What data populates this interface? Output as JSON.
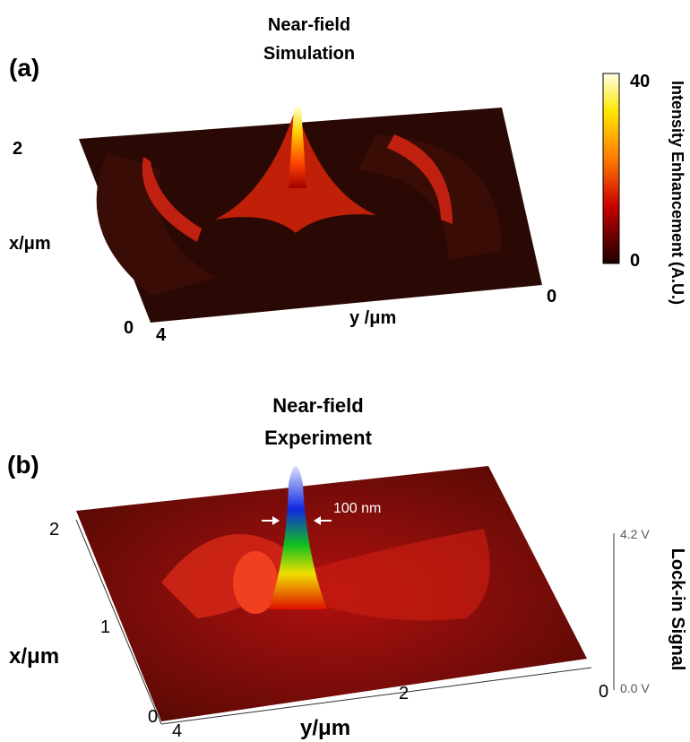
{
  "panel_a": {
    "label": "(a)",
    "title": [
      "Near-field",
      "Simulation"
    ],
    "x_label": "x/μm",
    "x_ticks": [
      "2",
      "0"
    ],
    "y_label": "y /μm",
    "y_ticks": [
      "4",
      "0"
    ],
    "colorbar_label": "Intensity Enhancement (A.U.)",
    "colorbar_ticks": [
      "40",
      "0"
    ]
  },
  "panel_b": {
    "label": "(b)",
    "title": [
      "Near-field",
      "Experiment"
    ],
    "annotation": "100 nm",
    "x_label": "x/μm",
    "x_ticks": [
      "2",
      "1",
      "0"
    ],
    "y_label": "y/μm",
    "y_ticks": [
      "4",
      "2",
      "0"
    ],
    "z_label": "Lock-in Signal",
    "z_ticks": [
      "4.2 V",
      "0.0 V"
    ]
  }
}
